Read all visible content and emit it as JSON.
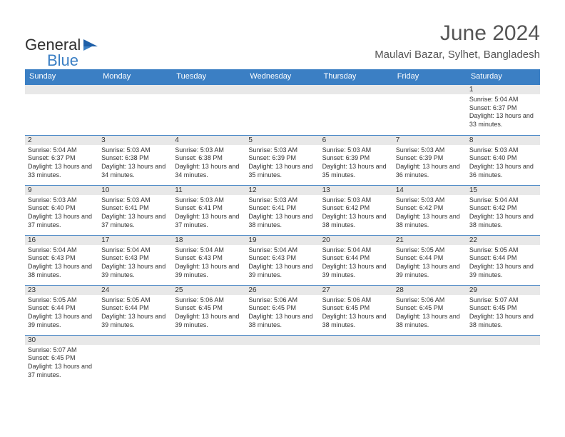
{
  "logo": {
    "text1": "General",
    "text2": "Blue"
  },
  "title": "June 2024",
  "location": "Maulavi Bazar, Sylhet, Bangladesh",
  "colors": {
    "header_bg": "#3b7fc4",
    "header_text": "#ffffff",
    "daynum_bg": "#e8e8e8",
    "border": "#3b7fc4",
    "text": "#333333",
    "title_text": "#555555"
  },
  "dayNames": [
    "Sunday",
    "Monday",
    "Tuesday",
    "Wednesday",
    "Thursday",
    "Friday",
    "Saturday"
  ],
  "weeks": [
    [
      null,
      null,
      null,
      null,
      null,
      null,
      {
        "n": "1",
        "sr": "5:04 AM",
        "ss": "6:37 PM",
        "dl": "13 hours and 33 minutes."
      }
    ],
    [
      {
        "n": "2",
        "sr": "5:04 AM",
        "ss": "6:37 PM",
        "dl": "13 hours and 33 minutes."
      },
      {
        "n": "3",
        "sr": "5:03 AM",
        "ss": "6:38 PM",
        "dl": "13 hours and 34 minutes."
      },
      {
        "n": "4",
        "sr": "5:03 AM",
        "ss": "6:38 PM",
        "dl": "13 hours and 34 minutes."
      },
      {
        "n": "5",
        "sr": "5:03 AM",
        "ss": "6:39 PM",
        "dl": "13 hours and 35 minutes."
      },
      {
        "n": "6",
        "sr": "5:03 AM",
        "ss": "6:39 PM",
        "dl": "13 hours and 35 minutes."
      },
      {
        "n": "7",
        "sr": "5:03 AM",
        "ss": "6:39 PM",
        "dl": "13 hours and 36 minutes."
      },
      {
        "n": "8",
        "sr": "5:03 AM",
        "ss": "6:40 PM",
        "dl": "13 hours and 36 minutes."
      }
    ],
    [
      {
        "n": "9",
        "sr": "5:03 AM",
        "ss": "6:40 PM",
        "dl": "13 hours and 37 minutes."
      },
      {
        "n": "10",
        "sr": "5:03 AM",
        "ss": "6:41 PM",
        "dl": "13 hours and 37 minutes."
      },
      {
        "n": "11",
        "sr": "5:03 AM",
        "ss": "6:41 PM",
        "dl": "13 hours and 37 minutes."
      },
      {
        "n": "12",
        "sr": "5:03 AM",
        "ss": "6:41 PM",
        "dl": "13 hours and 38 minutes."
      },
      {
        "n": "13",
        "sr": "5:03 AM",
        "ss": "6:42 PM",
        "dl": "13 hours and 38 minutes."
      },
      {
        "n": "14",
        "sr": "5:03 AM",
        "ss": "6:42 PM",
        "dl": "13 hours and 38 minutes."
      },
      {
        "n": "15",
        "sr": "5:04 AM",
        "ss": "6:42 PM",
        "dl": "13 hours and 38 minutes."
      }
    ],
    [
      {
        "n": "16",
        "sr": "5:04 AM",
        "ss": "6:43 PM",
        "dl": "13 hours and 38 minutes."
      },
      {
        "n": "17",
        "sr": "5:04 AM",
        "ss": "6:43 PM",
        "dl": "13 hours and 39 minutes."
      },
      {
        "n": "18",
        "sr": "5:04 AM",
        "ss": "6:43 PM",
        "dl": "13 hours and 39 minutes."
      },
      {
        "n": "19",
        "sr": "5:04 AM",
        "ss": "6:43 PM",
        "dl": "13 hours and 39 minutes."
      },
      {
        "n": "20",
        "sr": "5:04 AM",
        "ss": "6:44 PM",
        "dl": "13 hours and 39 minutes."
      },
      {
        "n": "21",
        "sr": "5:05 AM",
        "ss": "6:44 PM",
        "dl": "13 hours and 39 minutes."
      },
      {
        "n": "22",
        "sr": "5:05 AM",
        "ss": "6:44 PM",
        "dl": "13 hours and 39 minutes."
      }
    ],
    [
      {
        "n": "23",
        "sr": "5:05 AM",
        "ss": "6:44 PM",
        "dl": "13 hours and 39 minutes."
      },
      {
        "n": "24",
        "sr": "5:05 AM",
        "ss": "6:44 PM",
        "dl": "13 hours and 39 minutes."
      },
      {
        "n": "25",
        "sr": "5:06 AM",
        "ss": "6:45 PM",
        "dl": "13 hours and 39 minutes."
      },
      {
        "n": "26",
        "sr": "5:06 AM",
        "ss": "6:45 PM",
        "dl": "13 hours and 38 minutes."
      },
      {
        "n": "27",
        "sr": "5:06 AM",
        "ss": "6:45 PM",
        "dl": "13 hours and 38 minutes."
      },
      {
        "n": "28",
        "sr": "5:06 AM",
        "ss": "6:45 PM",
        "dl": "13 hours and 38 minutes."
      },
      {
        "n": "29",
        "sr": "5:07 AM",
        "ss": "6:45 PM",
        "dl": "13 hours and 38 minutes."
      }
    ],
    [
      {
        "n": "30",
        "sr": "5:07 AM",
        "ss": "6:45 PM",
        "dl": "13 hours and 37 minutes."
      },
      null,
      null,
      null,
      null,
      null,
      null
    ]
  ],
  "labels": {
    "sunrise": "Sunrise: ",
    "sunset": "Sunset: ",
    "daylight": "Daylight: "
  }
}
